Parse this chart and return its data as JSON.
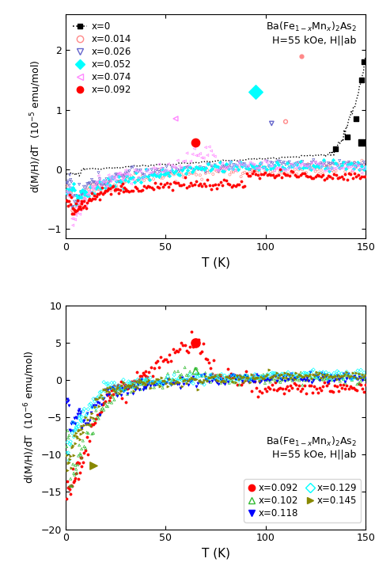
{
  "fig_width": 4.74,
  "fig_height": 7.15,
  "dpi": 100,
  "top_panel": {
    "xlim": [
      0,
      150
    ],
    "ylim": [
      -1.15,
      2.6
    ],
    "yticks": [
      -1,
      0,
      1,
      2
    ],
    "xticks": [
      0,
      50,
      100,
      150
    ],
    "xlabel": "T (K)",
    "ylabel": "d(M/H)/dT  (10$^{-5}$ emu/mol)",
    "series": [
      {
        "label": "x=0",
        "color": "black",
        "marker": "s",
        "filled": true
      },
      {
        "label": "x=0.014",
        "color": "#FF8888",
        "marker": "o",
        "filled": false
      },
      {
        "label": "x=0.026",
        "color": "#6666CC",
        "marker": "v",
        "filled": false
      },
      {
        "label": "x=0.052",
        "color": "cyan",
        "marker": "D",
        "filled": true
      },
      {
        "label": "x=0.074",
        "color": "#FF88FF",
        "marker": "<",
        "filled": false
      },
      {
        "label": "x=0.092",
        "color": "red",
        "marker": "o",
        "filled": true
      }
    ]
  },
  "bottom_panel": {
    "xlim": [
      0,
      150
    ],
    "ylim": [
      -20,
      10
    ],
    "yticks": [
      -20,
      -15,
      -10,
      -5,
      0,
      5,
      10
    ],
    "xticks": [
      0,
      50,
      100,
      150
    ],
    "xlabel": "T (K)",
    "ylabel": "d(M/H)/dT  (10$^{-6}$ emu/mol)",
    "series": [
      {
        "label": "x=0.092",
        "color": "red",
        "marker": "o",
        "filled": true
      },
      {
        "label": "x=0.102",
        "color": "#33BB33",
        "marker": "^",
        "filled": false
      },
      {
        "label": "x=0.118",
        "color": "blue",
        "marker": "v",
        "filled": true
      },
      {
        "label": "x=0.129",
        "color": "cyan",
        "marker": "D",
        "filled": false
      },
      {
        "label": "x=0.145",
        "color": "#888800",
        "marker": ">",
        "filled": true
      }
    ]
  }
}
